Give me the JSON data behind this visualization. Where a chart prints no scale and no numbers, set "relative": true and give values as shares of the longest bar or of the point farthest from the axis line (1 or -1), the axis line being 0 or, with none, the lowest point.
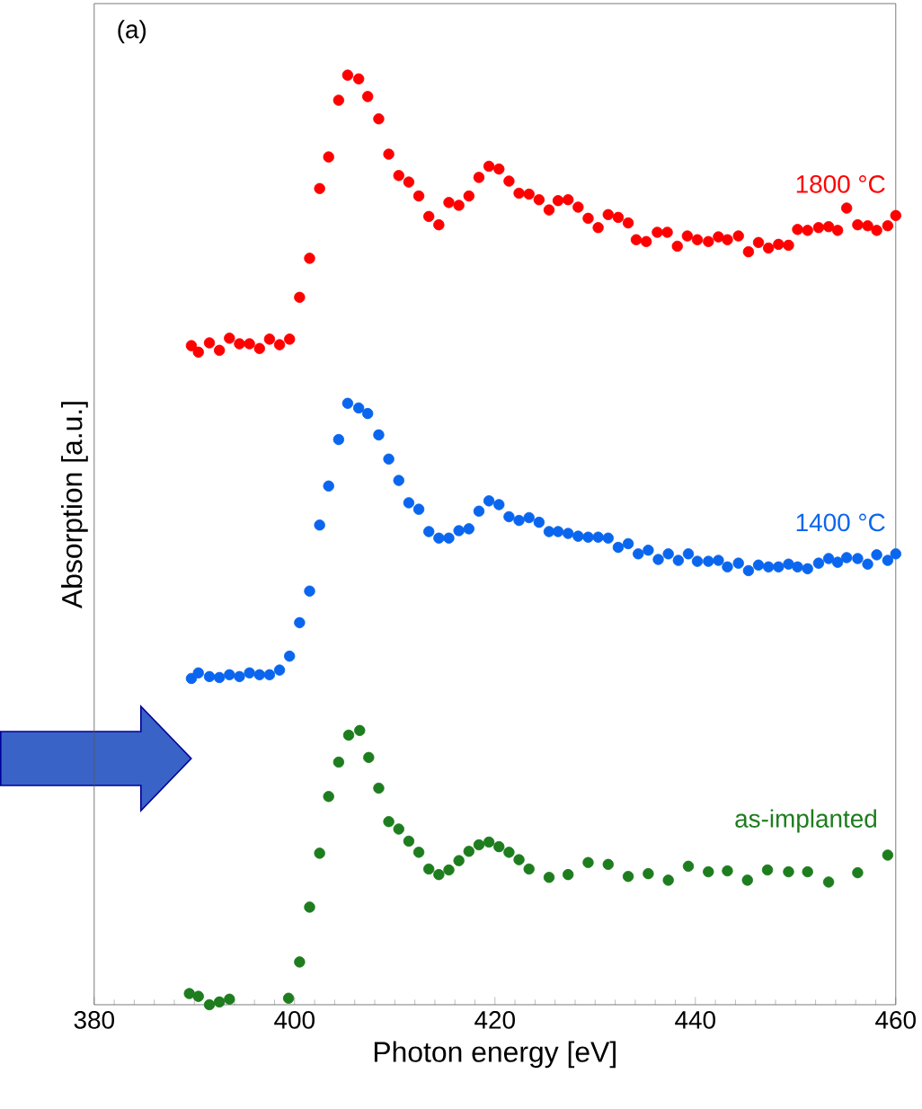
{
  "chart_data": {
    "type": "scatter",
    "xlabel": "Photon energy [eV]",
    "ylabel": "Absorption [a.u.]",
    "annotations": [
      "(a)"
    ],
    "relative": true,
    "marker": "circle",
    "xlim": [
      380,
      460
    ],
    "xticks": [
      380,
      400,
      420,
      440,
      460
    ],
    "series": [
      {
        "name": "1800 °C",
        "color": "#ff0000",
        "x": [
          389.7,
          390.4,
          391.5,
          392.5,
          393.5,
          394.5,
          395.5,
          396.5,
          397.5,
          398.5,
          399.5,
          400.5,
          401.5,
          402.5,
          403.4,
          404.4,
          405.3,
          406.4,
          407.3,
          408.4,
          409.4,
          410.4,
          411.4,
          412.4,
          413.4,
          414.4,
          415.4,
          416.4,
          417.4,
          418.4,
          419.4,
          420.4,
          421.4,
          422.4,
          423.4,
          424.4,
          425.4,
          426.3,
          427.3,
          428.3,
          429.3,
          430.3,
          431.3,
          432.3,
          433.3,
          434.1,
          435.1,
          436.2,
          437.2,
          438.2,
          439.2,
          440.2,
          441.3,
          442.3,
          443.2,
          444.3,
          445.3,
          446.3,
          447.3,
          448.3,
          449.3,
          450.2,
          451.2,
          452.3,
          453.3,
          454.2,
          455.1,
          456.2,
          457.2,
          458.1,
          459.2,
          460.0
        ],
        "values": [
          0.709,
          0.702,
          0.712,
          0.704,
          0.717,
          0.711,
          0.711,
          0.706,
          0.716,
          0.71,
          0.716,
          0.761,
          0.803,
          0.878,
          0.912,
          0.973,
          1.0,
          0.996,
          0.977,
          0.953,
          0.915,
          0.892,
          0.885,
          0.87,
          0.848,
          0.839,
          0.863,
          0.86,
          0.87,
          0.89,
          0.902,
          0.899,
          0.886,
          0.873,
          0.872,
          0.866,
          0.855,
          0.865,
          0.866,
          0.858,
          0.846,
          0.836,
          0.85,
          0.847,
          0.841,
          0.823,
          0.821,
          0.831,
          0.831,
          0.816,
          0.827,
          0.823,
          0.821,
          0.826,
          0.823,
          0.827,
          0.81,
          0.82,
          0.814,
          0.818,
          0.817,
          0.834,
          0.833,
          0.836,
          0.837,
          0.833,
          0.857,
          0.839,
          0.838,
          0.833,
          0.838,
          0.849
        ]
      },
      {
        "name": "1400 °C",
        "color": "#0a66ee",
        "x": [
          389.7,
          390.4,
          391.5,
          392.5,
          393.5,
          394.5,
          395.5,
          396.5,
          397.5,
          398.5,
          399.5,
          400.5,
          401.5,
          402.5,
          403.4,
          404.4,
          405.3,
          406.4,
          407.3,
          408.4,
          409.4,
          410.4,
          411.4,
          412.4,
          413.4,
          414.4,
          415.4,
          416.4,
          417.4,
          418.4,
          419.4,
          420.4,
          421.4,
          422.4,
          423.4,
          424.4,
          425.4,
          426.3,
          427.3,
          428.3,
          429.3,
          430.3,
          431.3,
          432.3,
          433.3,
          434.3,
          435.3,
          436.3,
          437.3,
          438.3,
          439.3,
          440.2,
          441.3,
          442.3,
          443.2,
          444.3,
          445.3,
          446.3,
          447.3,
          448.3,
          449.3,
          450.2,
          451.2,
          452.3,
          453.3,
          454.2,
          455.1,
          456.2,
          457.2,
          458.1,
          459.2,
          460.0
        ],
        "values": [
          0.351,
          0.357,
          0.353,
          0.352,
          0.355,
          0.353,
          0.357,
          0.355,
          0.355,
          0.36,
          0.375,
          0.411,
          0.445,
          0.516,
          0.558,
          0.608,
          0.647,
          0.642,
          0.636,
          0.613,
          0.587,
          0.564,
          0.54,
          0.533,
          0.509,
          0.502,
          0.502,
          0.51,
          0.512,
          0.531,
          0.542,
          0.538,
          0.525,
          0.521,
          0.524,
          0.519,
          0.509,
          0.509,
          0.507,
          0.504,
          0.503,
          0.503,
          0.502,
          0.492,
          0.496,
          0.485,
          0.489,
          0.479,
          0.485,
          0.478,
          0.485,
          0.477,
          0.477,
          0.478,
          0.471,
          0.475,
          0.467,
          0.473,
          0.471,
          0.471,
          0.474,
          0.471,
          0.469,
          0.475,
          0.48,
          0.476,
          0.481,
          0.48,
          0.474,
          0.484,
          0.478,
          0.485
        ]
      },
      {
        "name": "as-implanted",
        "color": "#1e7d1e",
        "x": [
          389.5,
          390.4,
          391.5,
          392.5,
          393.5,
          399.4,
          400.5,
          401.5,
          402.5,
          403.4,
          404.4,
          405.4,
          406.5,
          407.4,
          408.4,
          409.4,
          410.4,
          411.4,
          412.4,
          413.4,
          414.4,
          415.4,
          416.4,
          417.4,
          418.4,
          419.4,
          420.4,
          421.4,
          422.4,
          423.4,
          425.4,
          427.3,
          429.3,
          431.3,
          433.3,
          435.3,
          437.3,
          439.3,
          441.3,
          443.2,
          445.2,
          447.2,
          449.3,
          451.2,
          453.3,
          456.2,
          459.2
        ],
        "values": [
          0.012,
          0.009,
          0.0,
          0.003,
          0.006,
          0.007,
          0.046,
          0.105,
          0.163,
          0.224,
          0.261,
          0.29,
          0.295,
          0.266,
          0.233,
          0.197,
          0.189,
          0.176,
          0.164,
          0.146,
          0.14,
          0.145,
          0.155,
          0.165,
          0.172,
          0.175,
          0.17,
          0.164,
          0.156,
          0.146,
          0.137,
          0.14,
          0.153,
          0.151,
          0.138,
          0.141,
          0.134,
          0.149,
          0.143,
          0.144,
          0.134,
          0.145,
          0.143,
          0.143,
          0.132,
          0.142,
          0.161
        ]
      }
    ]
  }
}
